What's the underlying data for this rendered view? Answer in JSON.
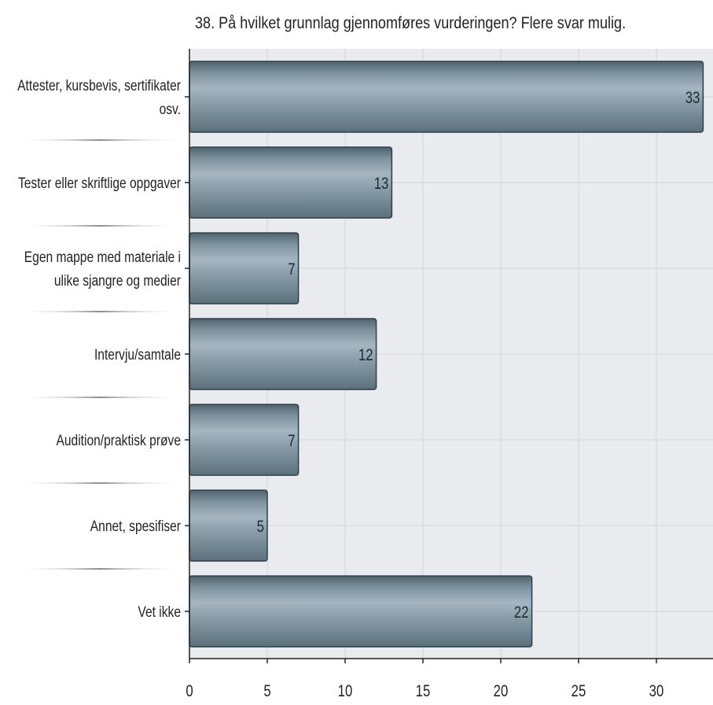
{
  "chart_data": {
    "type": "bar",
    "orientation": "horizontal",
    "title": "38. På hvilket grunnlag gjennomføres vurderingen? Flere svar mulig.",
    "categories": [
      [
        "Attester, kursbevis, sertifikater",
        "osv."
      ],
      [
        "Tester eller skriftlige oppgaver"
      ],
      [
        "Egen mappe med materiale i",
        "ulike sjangre og medier"
      ],
      [
        "Intervju/samtale"
      ],
      [
        "Audition/praktisk prøve"
      ],
      [
        "Annet, spesifiser"
      ],
      [
        "Vet ikke"
      ]
    ],
    "values": [
      33,
      13,
      7,
      12,
      7,
      5,
      22
    ],
    "data_labels": [
      "33",
      "13",
      "7",
      "12",
      "7",
      "5",
      "22"
    ],
    "xlim": [
      0,
      33
    ],
    "ticks": [
      0,
      5,
      10,
      15,
      20,
      25,
      30
    ],
    "tick_labels": [
      "0",
      "5",
      "10",
      "15",
      "20",
      "25",
      "30"
    ],
    "grid": true,
    "legend": "none",
    "colors": {
      "bar_light": "#9fb1bd",
      "bar_mid": "#7e929e",
      "bar_dark": "#4f626d",
      "bar_stroke": "#2f3e46",
      "plot_background": "#e9ebee",
      "grid": "#d3d6da",
      "axis": "#222222",
      "text": "#222222"
    }
  }
}
